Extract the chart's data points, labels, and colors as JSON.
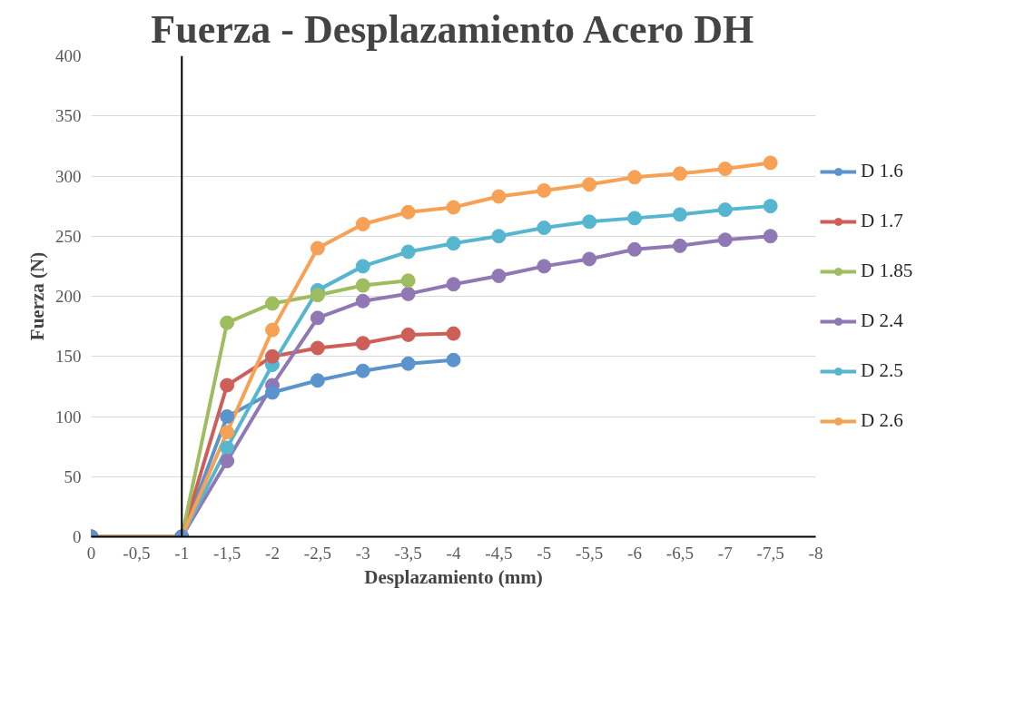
{
  "chart_data": {
    "type": "line",
    "title": "Fuerza - Desplazamiento Acero DH",
    "xlabel": "Desplazamiento (mm)",
    "ylabel": "Fuerza (N)",
    "x": [
      0,
      -1,
      -1.5,
      -2,
      -2.5,
      -3,
      -3.5,
      -4,
      -4.5,
      -5,
      -5.5,
      -6,
      -6.5,
      -7,
      -7.5
    ],
    "series": [
      {
        "name": "D 1.6",
        "color": "#5b93cc",
        "values": [
          0,
          0,
          100,
          120,
          130,
          138,
          144,
          147,
          null,
          null,
          null,
          null,
          null,
          null,
          null
        ]
      },
      {
        "name": "D 1.7",
        "color": "#cd5f58",
        "values": [
          0,
          0,
          126,
          150,
          157,
          161,
          168,
          169,
          null,
          null,
          null,
          null,
          null,
          null,
          null
        ]
      },
      {
        "name": "D 1.85",
        "color": "#9dbd5f",
        "values": [
          0,
          0,
          178,
          194,
          201,
          209,
          213,
          null,
          null,
          null,
          null,
          null,
          null,
          null,
          null
        ]
      },
      {
        "name": "D 2.4",
        "color": "#8f78b3",
        "values": [
          0,
          0,
          63,
          126,
          182,
          196,
          202,
          210,
          217,
          225,
          231,
          239,
          242,
          247,
          250
        ]
      },
      {
        "name": "D 2.5",
        "color": "#56b6cf",
        "values": [
          0,
          0,
          74,
          143,
          205,
          225,
          237,
          244,
          250,
          257,
          262,
          265,
          268,
          272,
          275
        ]
      },
      {
        "name": "D 2.6",
        "color": "#f6a154",
        "values": [
          0,
          0,
          87,
          172,
          240,
          260,
          270,
          274,
          283,
          288,
          293,
          299,
          302,
          306,
          311
        ]
      }
    ],
    "xlim": [
      0,
      -8
    ],
    "ylim": [
      0,
      400
    ],
    "xticks": [
      0,
      {
        "value": -0.5,
        "label": "-0,5"
      },
      -1,
      {
        "value": -1.5,
        "label": "-1,5"
      },
      -2,
      {
        "value": -2.5,
        "label": "-2,5"
      },
      -3,
      {
        "value": -3.5,
        "label": "-3,5"
      },
      -4,
      {
        "value": -4.5,
        "label": "-4,5"
      },
      -5,
      {
        "value": -5.5,
        "label": "-5,5"
      },
      -6,
      {
        "value": -6.5,
        "label": "-6,5"
      },
      -7,
      {
        "value": -7.5,
        "label": "-7,5"
      },
      -8
    ],
    "yticks": [
      0,
      50,
      100,
      150,
      200,
      250,
      300,
      350,
      400
    ],
    "ref_lines": [
      {
        "axis": "x",
        "value": -1,
        "color": "#000000"
      }
    ],
    "grid": "y",
    "legend": "right",
    "marker": "circle",
    "line_style": "solid"
  }
}
